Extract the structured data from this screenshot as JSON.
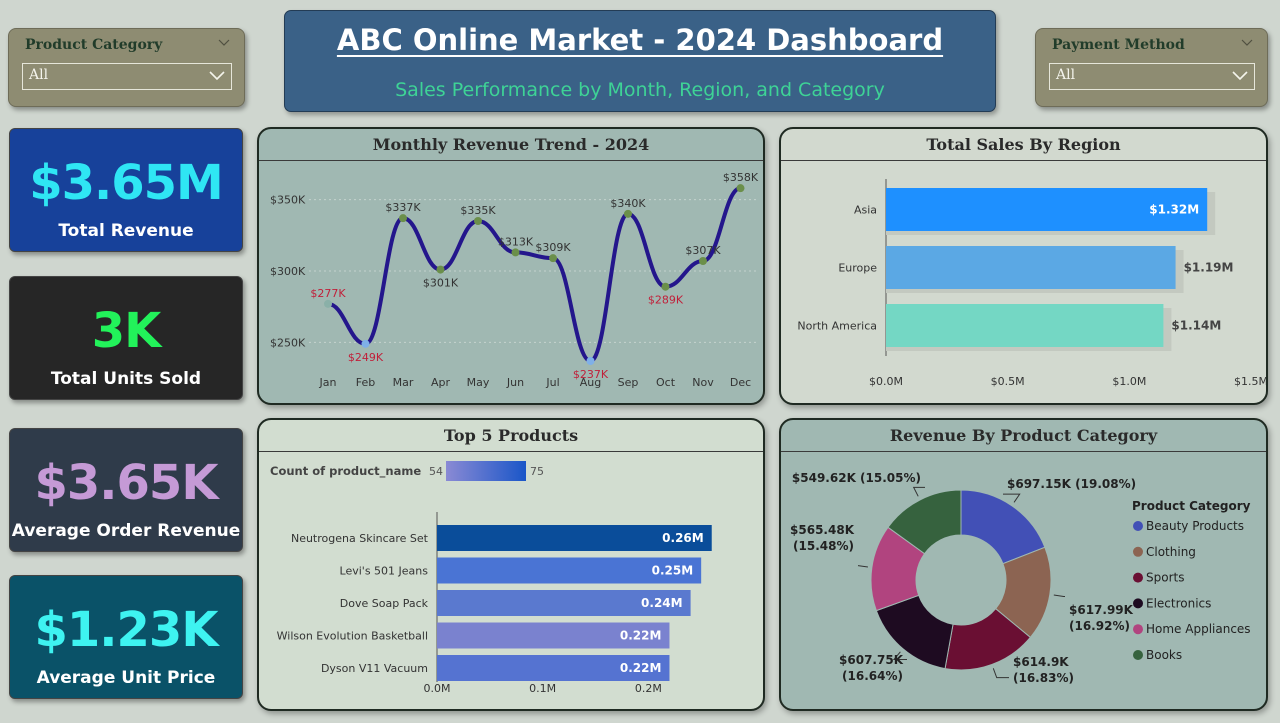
{
  "filters": {
    "product_category": {
      "title": "Product Category",
      "value": "All"
    },
    "payment_method": {
      "title": "Payment Method",
      "value": "All"
    }
  },
  "header": {
    "title": "ABC Online Market - 2024 Dashboard",
    "subtitle": "Sales Performance by Month, Region, and Category"
  },
  "kpis": [
    {
      "value": "$3.65M",
      "label": "Total Revenue",
      "value_color": "#2fe6f4",
      "bg": "#17419a"
    },
    {
      "value": "3K",
      "label": "Total Units Sold",
      "value_color": "#22f25a",
      "bg": "#262626"
    },
    {
      "value": "$3.65K",
      "label": "Average Order Revenue",
      "value_color": "#c59ad6",
      "bg": "#2f3b4a"
    },
    {
      "value": "$1.23K",
      "label": "Average Unit Price",
      "value_color": "#3ef3f1",
      "bg": "#0a5268"
    }
  ],
  "chart_data": [
    {
      "id": "monthly",
      "type": "line",
      "title": "Monthly Revenue Trend - 2024",
      "categories": [
        "Jan",
        "Feb",
        "Mar",
        "Apr",
        "May",
        "Jun",
        "Jul",
        "Aug",
        "Sep",
        "Oct",
        "Nov",
        "Dec"
      ],
      "values": [
        277,
        249,
        337,
        301,
        335,
        313,
        309,
        237,
        340,
        289,
        307,
        358
      ],
      "data_labels": [
        "$277K",
        "$249K",
        "$337K",
        "$301K",
        "$335K",
        "$313K",
        "$309K",
        "$237K",
        "$340K",
        "$289K",
        "$307K",
        "$358K"
      ],
      "y_ticks": [
        250,
        300,
        350
      ],
      "y_tick_labels": [
        "$250K",
        "$300K",
        "$350K"
      ],
      "ylim": [
        230,
        363
      ],
      "grid": true,
      "colors": {
        "line": "#24168c",
        "label_high": "#333333",
        "label_low": "#c0203a",
        "marker": "#6b8f4a",
        "marker_low": "#7fb0e8",
        "marker_mid": "#8ab0a8"
      }
    },
    {
      "id": "region",
      "type": "bar",
      "orientation": "horizontal",
      "title": "Total Sales By Region",
      "categories": [
        "Asia",
        "Europe",
        "North America"
      ],
      "values": [
        1.32,
        1.19,
        1.14
      ],
      "data_labels": [
        "$1.32M",
        "$1.19M",
        "$1.14M"
      ],
      "x_ticks": [
        0,
        0.5,
        1.0,
        1.5
      ],
      "x_tick_labels": [
        "$0.0M",
        "$0.5M",
        "$1.0M",
        "$1.5M"
      ],
      "xlim": [
        0,
        1.5
      ],
      "colors": [
        "#1e90ff",
        "#5ba8e4",
        "#74d7c4"
      ]
    },
    {
      "id": "products",
      "type": "bar",
      "orientation": "horizontal",
      "title": "Top 5 Products",
      "legend_title": "Count of  product_name",
      "legend_min": "54",
      "legend_max": "75",
      "categories": [
        "Neutrogena Skincare Set",
        "Levi's 501 Jeans",
        "Dove Soap Pack",
        "Wilson Evolution Basketball",
        "Dyson V11 Vacuum"
      ],
      "values": [
        0.26,
        0.25,
        0.24,
        0.22,
        0.22
      ],
      "data_labels": [
        "0.26M",
        "0.25M",
        "0.24M",
        "0.22M",
        "0.22M"
      ],
      "x_ticks": [
        0,
        0.1,
        0.2
      ],
      "x_tick_labels": [
        "0.0M",
        "0.1M",
        "0.2M"
      ],
      "xlim": [
        0,
        0.3
      ],
      "colors": [
        "#0a4d9a",
        "#4a74d4",
        "#5a79cf",
        "#7a82cf",
        "#5573d1"
      ]
    },
    {
      "id": "category",
      "type": "pie",
      "title": "Revenue By Product Category",
      "legend_title": "Product Category",
      "categories": [
        "Beauty Products",
        "Clothing",
        "Sports",
        "Electronics",
        "Home Appliances",
        "Books"
      ],
      "values": [
        697.15,
        617.99,
        614.9,
        607.75,
        565.48,
        549.62
      ],
      "percents": [
        19.08,
        16.92,
        16.83,
        16.64,
        15.48,
        15.05
      ],
      "data_labels": [
        "$697.15K (19.08%)",
        "$617.99K (16.92%)",
        "$614.9K (16.83%)",
        "$607.75K (16.64%)",
        "$565.48K (15.48%)",
        "$549.62K (15.05%)"
      ],
      "colors": [
        "#4250b6",
        "#8c6452",
        "#6a0f33",
        "#1e0b21",
        "#b1447f",
        "#36623e"
      ]
    }
  ]
}
